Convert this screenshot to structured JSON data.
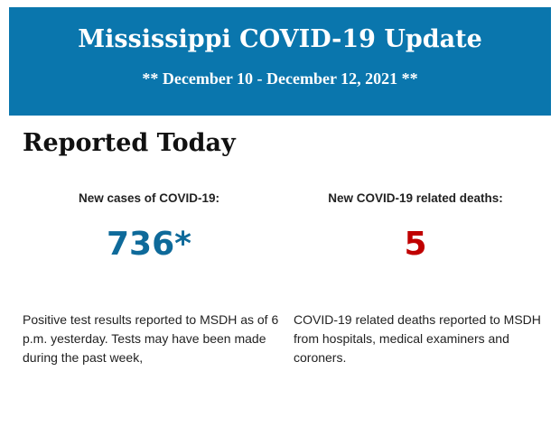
{
  "header": {
    "title": "Mississippi COVID-19 Update",
    "subtitle": "** December 10 - December 12, 2021 **",
    "background_color": "#0a76ad"
  },
  "section_title": "Reported Today",
  "cases": {
    "label": "New cases of COVID-19:",
    "value": "736*",
    "color": "#0e6a9a",
    "description": "Positive test results reported to MSDH as of 6 p.m. yesterday. Tests may have been made during the past week,"
  },
  "deaths": {
    "label": "New COVID-19 related deaths:",
    "value": "5",
    "color": "#c00000",
    "description": "COVID-19 related deaths reported to MSDH from hospitals, medical examiners and coroners."
  }
}
